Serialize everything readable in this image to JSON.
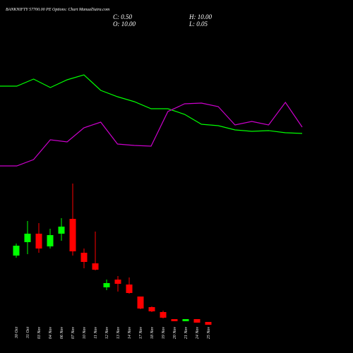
{
  "chart_data": [
    {
      "type": "line",
      "x": [
        0,
        1,
        2,
        3,
        4,
        5,
        6,
        7,
        8,
        9,
        10,
        11,
        12,
        13,
        14,
        15,
        16,
        17,
        18
      ],
      "xlim": [
        0,
        18
      ],
      "ylim": [
        0,
        200
      ],
      "series": [
        {
          "color": "#00ff00",
          "values": [
            178,
            178,
            188,
            176,
            187,
            194,
            172,
            163,
            156,
            146,
            146,
            138,
            124,
            122,
            116,
            114,
            115,
            112,
            111
          ]
        },
        {
          "color": "#cc00cc",
          "values": [
            65,
            65,
            74,
            102,
            99,
            119,
            127,
            96,
            94,
            93,
            142,
            153,
            154,
            149,
            123,
            128,
            123,
            155,
            120
          ]
        }
      ]
    },
    {
      "type": "candlestick",
      "title": "BANKNIFTY 57700.00 PE Options: Chart ManualSutra.com",
      "stats": [
        "C: 0.50",
        "O: 10.00",
        "H: 10.00",
        "L: 0.05"
      ],
      "categories": [
        "30 Oct",
        "31 Oct",
        "03 Nov",
        "04 Nov",
        "06 Nov",
        "07 Nov",
        "10 Nov",
        "11 Nov",
        "12 Nov",
        "13 Nov",
        "14 Nov",
        "17 Nov",
        "18 Nov",
        "19 Nov",
        "20 Nov",
        "21 Nov",
        "24 Nov",
        "25 Nov"
      ],
      "open": [
        54,
        63.5,
        69.5,
        60.5,
        69.5,
        80,
        56,
        48.5,
        31.5,
        37,
        33.5,
        25,
        17.5,
        14,
        9,
        7.5,
        9,
        7
      ],
      "high": [
        62.5,
        78.5,
        77,
        73,
        80.5,
        105,
        59,
        71,
        37,
        39.5,
        38.5,
        25,
        18,
        15,
        9,
        9,
        9,
        7
      ],
      "low": [
        52.5,
        55,
        56,
        59,
        64.5,
        54,
        45,
        43.5,
        29.5,
        28.5,
        27,
        16,
        14,
        9.5,
        7.5,
        7.5,
        6.5,
        5
      ],
      "close": [
        61,
        69.5,
        59,
        68.5,
        74.5,
        57,
        49.5,
        44,
        34.5,
        34,
        27.5,
        16.5,
        14.5,
        10,
        7.5,
        9,
        6.5,
        5
      ],
      "up_color": "#00ff00",
      "down_color": "#ff0000",
      "ylim": [
        0,
        110
      ]
    }
  ]
}
